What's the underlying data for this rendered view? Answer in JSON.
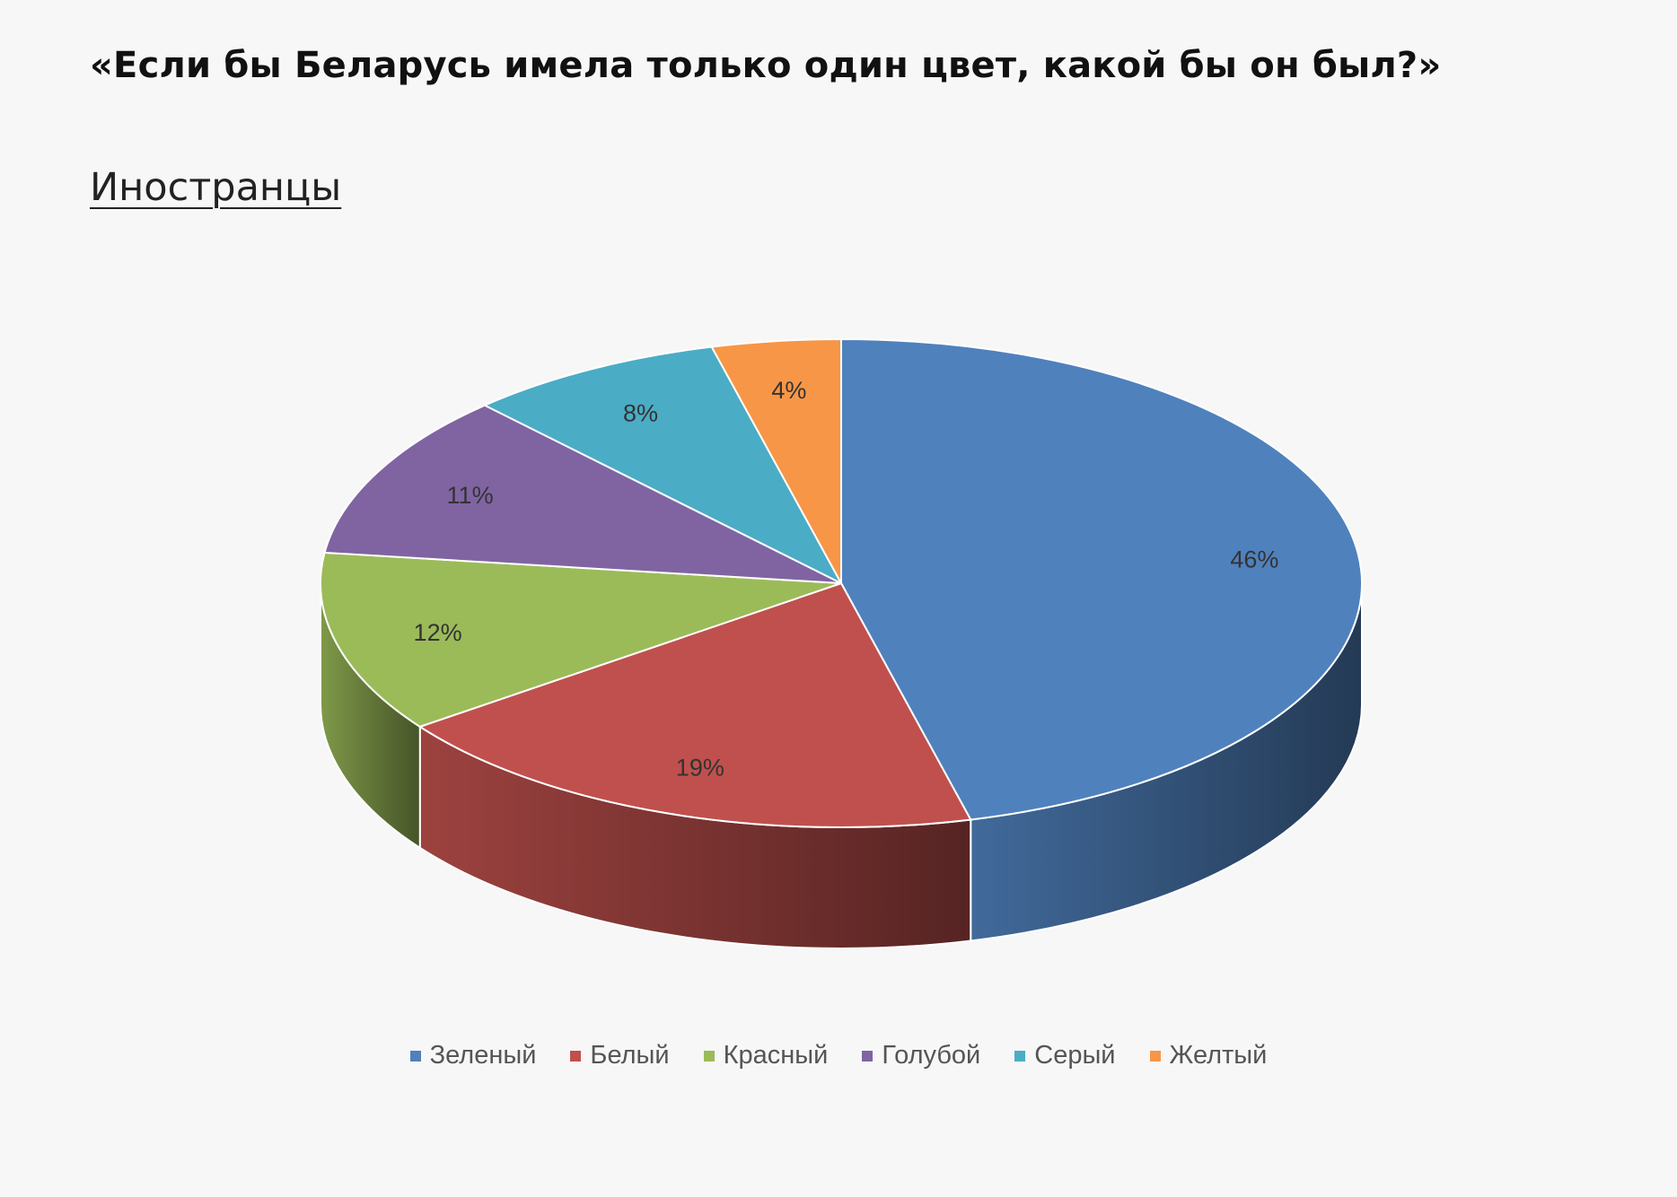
{
  "title": "«Если бы Беларусь имела только один цвет, какой бы он был?»",
  "subtitle": "Иностранцы",
  "chart_data": {
    "type": "pie",
    "style": "3d",
    "categories": [
      "Зеленый",
      "Белый",
      "Красный",
      "Голубой",
      "Серый",
      "Желтый"
    ],
    "values": [
      46,
      19,
      12,
      11,
      8,
      4
    ],
    "labels": [
      "46%",
      "19%",
      "12%",
      "11%",
      "8%",
      "4%"
    ],
    "colors": [
      "#4f81bd",
      "#c0504d",
      "#9bbb59",
      "#8064a2",
      "#4bacc6",
      "#f79646"
    ],
    "legend_position": "bottom"
  }
}
